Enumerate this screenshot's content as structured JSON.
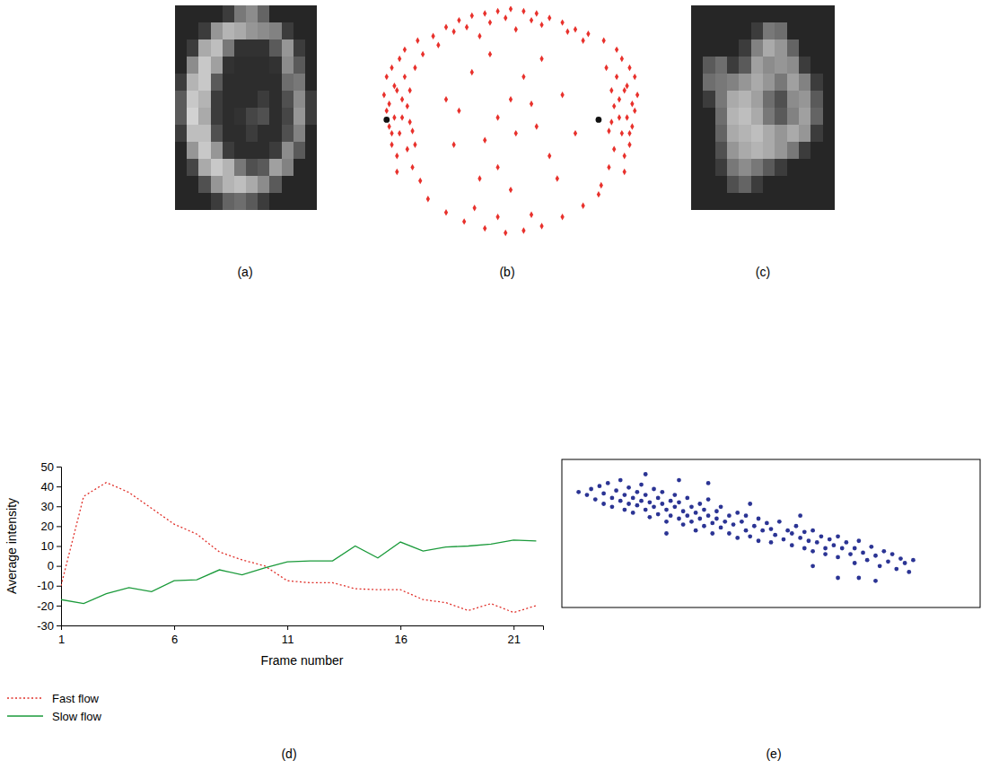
{
  "chart_data": [
    {
      "type": "heatmap",
      "title": "(a)",
      "color": "gray",
      "zlim": [
        0,
        255
      ],
      "tick_labels": false,
      "cells": [
        [
          38,
          38,
          38,
          38,
          60,
          120,
          140,
          100,
          38,
          38,
          38,
          38
        ],
        [
          38,
          38,
          60,
          150,
          180,
          170,
          150,
          140,
          130,
          60,
          38,
          38
        ],
        [
          38,
          60,
          170,
          190,
          120,
          50,
          50,
          50,
          90,
          150,
          60,
          38
        ],
        [
          38,
          140,
          200,
          160,
          50,
          45,
          45,
          45,
          50,
          140,
          90,
          38
        ],
        [
          60,
          180,
          200,
          90,
          45,
          45,
          45,
          45,
          45,
          110,
          120,
          38
        ],
        [
          90,
          200,
          180,
          60,
          45,
          45,
          45,
          60,
          45,
          80,
          140,
          60
        ],
        [
          90,
          210,
          170,
          60,
          45,
          50,
          70,
          80,
          45,
          70,
          150,
          60
        ],
        [
          60,
          190,
          190,
          80,
          45,
          45,
          60,
          45,
          45,
          80,
          130,
          38
        ],
        [
          38,
          150,
          200,
          150,
          60,
          45,
          45,
          45,
          60,
          140,
          90,
          38
        ],
        [
          38,
          70,
          170,
          200,
          180,
          120,
          80,
          90,
          160,
          130,
          38,
          38
        ],
        [
          38,
          38,
          80,
          150,
          180,
          190,
          170,
          140,
          90,
          38,
          38,
          38
        ],
        [
          38,
          38,
          38,
          60,
          100,
          110,
          90,
          60,
          38,
          38,
          38,
          38
        ]
      ]
    },
    {
      "type": "scatter",
      "title": "(b)",
      "xlim": [
        0,
        100
      ],
      "ylim": [
        0,
        100
      ],
      "tick_labels": false,
      "series": [
        {
          "color": "#e8312c",
          "marker": "diamond",
          "x": [
            2,
            3,
            1,
            4,
            5,
            2,
            6,
            3,
            5,
            7,
            8,
            4,
            6,
            9,
            10,
            7,
            8,
            11,
            12,
            9,
            12,
            10,
            13,
            14,
            15,
            6,
            4,
            11,
            16,
            13,
            98,
            97,
            99,
            96,
            95,
            98,
            94,
            97,
            95,
            93,
            92,
            96,
            94,
            91,
            90,
            93,
            92,
            89,
            88,
            91,
            88,
            90,
            87,
            86,
            85,
            94,
            96,
            89,
            20,
            25,
            30,
            35,
            40,
            45,
            50,
            55,
            60,
            65,
            70,
            75,
            80,
            28,
            42,
            58,
            72,
            22,
            33,
            48,
            62,
            78,
            38,
            52,
            18,
            25,
            32,
            40,
            48,
            55,
            62,
            70,
            78,
            84,
            36,
            58,
            45,
            30,
            40,
            50,
            60,
            45,
            55,
            35,
            65,
            70,
            28,
            50,
            42,
            62,
            75,
            25,
            52,
            38,
            68,
            58,
            45
          ],
          "values": [
            55,
            48,
            62,
            40,
            66,
            70,
            35,
            58,
            52,
            45,
            60,
            74,
            28,
            70,
            38,
            78,
            52,
            64,
            46,
            82,
            30,
            57,
            74,
            86,
            24,
            64,
            45,
            50,
            80,
            40,
            55,
            48,
            62,
            40,
            66,
            70,
            35,
            58,
            52,
            45,
            60,
            74,
            28,
            70,
            38,
            78,
            52,
            64,
            46,
            82,
            30,
            57,
            74,
            86,
            22,
            64,
            45,
            50,
            88,
            92,
            95,
            97,
            98,
            99,
            100,
            99,
            98,
            96,
            94,
            91,
            89,
            90,
            94,
            95,
            90,
            84,
            92,
            96,
            93,
            86,
            88,
            91,
            16,
            10,
            6,
            3,
            1,
            2,
            4,
            8,
            13,
            18,
            12,
            9,
            8,
            55,
            42,
            60,
            48,
            30,
            70,
            72,
            35,
            62,
            40,
            20,
            80,
            78,
            45,
            60,
            45,
            25,
            25,
            58,
            52
          ]
        },
        {
          "color": "#111111",
          "marker": "circle",
          "x": [
            2,
            84
          ],
          "values": [
            51,
            51
          ]
        }
      ]
    },
    {
      "type": "heatmap",
      "title": "(c)",
      "color": "gray",
      "zlim": [
        0,
        255
      ],
      "tick_labels": false,
      "cells": [
        [
          38,
          38,
          38,
          38,
          38,
          38,
          38,
          38,
          38,
          38,
          38,
          38
        ],
        [
          38,
          38,
          38,
          38,
          38,
          60,
          120,
          110,
          38,
          38,
          38,
          38
        ],
        [
          38,
          38,
          38,
          38,
          60,
          130,
          170,
          150,
          100,
          38,
          38,
          38
        ],
        [
          38,
          90,
          110,
          60,
          90,
          160,
          140,
          150,
          140,
          60,
          38,
          38
        ],
        [
          38,
          110,
          120,
          130,
          150,
          170,
          150,
          120,
          160,
          130,
          60,
          38
        ],
        [
          38,
          60,
          120,
          170,
          180,
          160,
          110,
          80,
          140,
          150,
          90,
          38
        ],
        [
          38,
          38,
          110,
          180,
          190,
          170,
          120,
          90,
          130,
          160,
          100,
          38
        ],
        [
          38,
          38,
          100,
          170,
          180,
          190,
          170,
          150,
          170,
          150,
          60,
          38
        ],
        [
          38,
          38,
          80,
          150,
          170,
          180,
          170,
          150,
          120,
          60,
          38,
          38
        ],
        [
          38,
          38,
          60,
          120,
          140,
          120,
          90,
          60,
          38,
          38,
          38,
          38
        ],
        [
          38,
          38,
          38,
          80,
          100,
          60,
          38,
          38,
          38,
          38,
          38,
          38
        ],
        [
          38,
          38,
          38,
          38,
          38,
          38,
          38,
          38,
          38,
          38,
          38,
          38
        ]
      ]
    },
    {
      "type": "line",
      "title": "(d)",
      "xlabel": "Frame number",
      "ylabel": "Average intensity",
      "x": [
        1,
        2,
        3,
        4,
        5,
        6,
        7,
        8,
        9,
        10,
        11,
        12,
        13,
        14,
        15,
        16,
        17,
        18,
        19,
        20,
        21,
        22
      ],
      "xlim": [
        1,
        22.3
      ],
      "xticks": [
        1,
        6,
        11,
        16,
        21
      ],
      "ylim": [
        -30,
        50
      ],
      "yticks": [
        -30,
        -20,
        -10,
        0,
        10,
        20,
        30,
        40,
        50
      ],
      "legend": "bottom",
      "series": [
        {
          "name": "Fast flow",
          "color": "#e0302a",
          "line_style": "dotted",
          "values": [
            -10,
            35,
            42,
            37,
            29,
            21,
            16,
            7,
            3,
            0,
            -7.5,
            -8.5,
            -8.5,
            -11.5,
            -12,
            -12,
            -17,
            -18.5,
            -22.5,
            -19,
            -23.5,
            -20
          ]
        },
        {
          "name": "Slow flow",
          "color": "#1a9a3a",
          "line_style": "solid",
          "values": [
            -17,
            -19,
            -14,
            -11,
            -13,
            -7.5,
            -7,
            -2,
            -4.5,
            -1,
            2,
            2.5,
            2.5,
            10,
            4,
            12,
            7.5,
            9.5,
            10,
            11,
            13,
            12.5
          ]
        }
      ]
    },
    {
      "type": "scatter",
      "title": "(e)",
      "xlim": [
        0,
        100
      ],
      "ylim": [
        0,
        100
      ],
      "tick_labels": false,
      "series": [
        {
          "color": "#2b3494",
          "marker": "circle",
          "x": [
            4,
            6,
            7,
            8,
            9,
            10,
            10,
            11,
            12,
            12,
            13,
            14,
            14,
            15,
            15,
            16,
            16,
            17,
            17,
            18,
            18,
            19,
            19,
            20,
            20,
            21,
            21,
            22,
            22,
            23,
            23,
            24,
            24,
            25,
            25,
            26,
            26,
            27,
            27,
            28,
            28,
            29,
            29,
            30,
            30,
            31,
            31,
            32,
            32,
            33,
            33,
            34,
            34,
            35,
            35,
            36,
            36,
            37,
            37,
            38,
            38,
            39,
            40,
            40,
            41,
            42,
            42,
            43,
            44,
            44,
            45,
            46,
            47,
            47,
            48,
            49,
            50,
            50,
            51,
            52,
            53,
            54,
            55,
            55,
            56,
            57,
            58,
            58,
            59,
            60,
            60,
            61,
            62,
            63,
            63,
            64,
            65,
            66,
            66,
            67,
            68,
            69,
            70,
            70,
            71,
            72,
            73,
            74,
            75,
            76,
            77,
            78,
            79,
            80,
            81,
            82,
            83,
            84,
            71,
            60,
            35,
            45,
            20,
            28,
            25,
            57,
            66,
            75
          ],
          "values": [
            78,
            76,
            80,
            73,
            82,
            70,
            77,
            84,
            74,
            68,
            79,
            72,
            86,
            66,
            76,
            81,
            70,
            74,
            64,
            78,
            69,
            83,
            72,
            66,
            76,
            61,
            71,
            80,
            68,
            74,
            63,
            70,
            78,
            66,
            58,
            72,
            62,
            76,
            68,
            60,
            71,
            65,
            56,
            74,
            62,
            68,
            58,
            64,
            52,
            70,
            60,
            66,
            55,
            62,
            73,
            57,
            50,
            65,
            60,
            54,
            68,
            58,
            62,
            50,
            56,
            64,
            47,
            58,
            52,
            62,
            48,
            55,
            60,
            45,
            52,
            57,
            44,
            53,
            49,
            58,
            46,
            52,
            42,
            50,
            55,
            47,
            40,
            51,
            45,
            38,
            52,
            44,
            48,
            40,
            36,
            46,
            42,
            34,
            48,
            40,
            44,
            36,
            40,
            30,
            45,
            37,
            32,
            41,
            35,
            28,
            38,
            31,
            36,
            26,
            33,
            30,
            24,
            32,
            20,
            28,
            84,
            70,
            90,
            86,
            50,
            62,
            20,
            18
          ]
        }
      ]
    }
  ]
}
